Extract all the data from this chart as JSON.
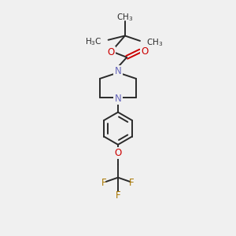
{
  "bg_color": "#f0f0f0",
  "line_color": "#2a2a2a",
  "N_color": "#6666bb",
  "O_color": "#cc0000",
  "F_color": "#aa7700",
  "bond_lw": 1.4,
  "font_size": 7.5,
  "figsize": [
    3.0,
    3.0
  ],
  "dpi": 100,
  "xlim": [
    0,
    10
  ],
  "ylim": [
    0,
    10
  ]
}
